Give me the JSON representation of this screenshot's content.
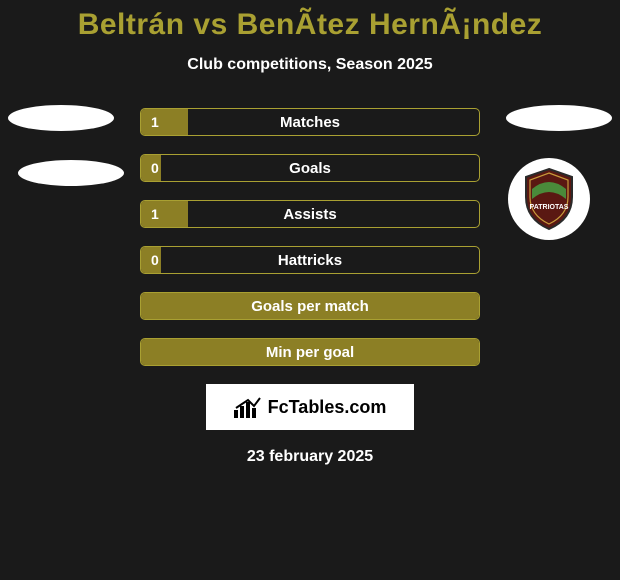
{
  "header": {
    "title": "Beltrán vs BenÃ­tez HernÃ¡ndez",
    "title_color": "#a9a032",
    "subtitle": "Club competitions, Season 2025"
  },
  "stats": {
    "bar_border_color": "#a9a032",
    "bar_fill_color": "#8c7f25",
    "rows": [
      {
        "label": "Matches",
        "value": "1",
        "fill_pct": 14
      },
      {
        "label": "Goals",
        "value": "0",
        "fill_pct": 6
      },
      {
        "label": "Assists",
        "value": "1",
        "fill_pct": 14
      },
      {
        "label": "Hattricks",
        "value": "0",
        "fill_pct": 6
      },
      {
        "label": "Goals per match",
        "value": "",
        "fill_pct": 100
      },
      {
        "label": "Min per goal",
        "value": "",
        "fill_pct": 100
      }
    ]
  },
  "right_badge": {
    "shield_main": "#5a1812",
    "shield_stripe": "#4a8a3a",
    "shield_border": "#2a2a2a"
  },
  "footer": {
    "brand_text": "FcTables.com",
    "date": "23 february 2025"
  },
  "colors": {
    "background": "#1a1a1a",
    "text": "#ffffff"
  }
}
